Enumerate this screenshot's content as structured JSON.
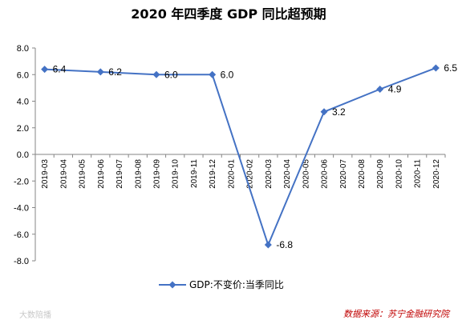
{
  "chart_data": {
    "type": "line",
    "title": "2020 年四季度 GDP 同比超预期",
    "categories": [
      "2019-03",
      "2019-04",
      "2019-05",
      "2019-06",
      "2019-07",
      "2019-08",
      "2019-09",
      "2019-10",
      "2019-11",
      "2019-12",
      "2020-01",
      "2020-02",
      "2020-03",
      "2020-04",
      "2020-05",
      "2020-06",
      "2020-07",
      "2020-08",
      "2020-09",
      "2020-10",
      "2020-11",
      "2020-12"
    ],
    "series": [
      {
        "name": "GDP:不变价:当季同比",
        "points": [
          {
            "x": "2019-03",
            "y": 6.4,
            "label": "6.4"
          },
          {
            "x": "2019-06",
            "y": 6.2,
            "label": "6.2"
          },
          {
            "x": "2019-09",
            "y": 6.0,
            "label": "6.0"
          },
          {
            "x": "2019-12",
            "y": 6.0,
            "label": "6.0"
          },
          {
            "x": "2020-03",
            "y": -6.8,
            "label": "-6.8"
          },
          {
            "x": "2020-06",
            "y": 3.2,
            "label": "3.2"
          },
          {
            "x": "2020-09",
            "y": 4.9,
            "label": "4.9"
          },
          {
            "x": "2020-12",
            "y": 6.5,
            "label": "6.5"
          }
        ]
      }
    ],
    "yticks": [
      "8.0",
      "6.0",
      "4.0",
      "2.0",
      "0.0",
      "-2.0",
      "-4.0",
      "-6.0",
      "-8.0"
    ],
    "ylim": [
      -8,
      8
    ],
    "xlabel": "",
    "ylabel": "",
    "grid": false,
    "legend": "bottom"
  },
  "colors": {
    "series": "#4472c4",
    "source": "#c00000"
  },
  "source": "数据来源：苏宁金融研究院",
  "watermark": "大数陪播"
}
